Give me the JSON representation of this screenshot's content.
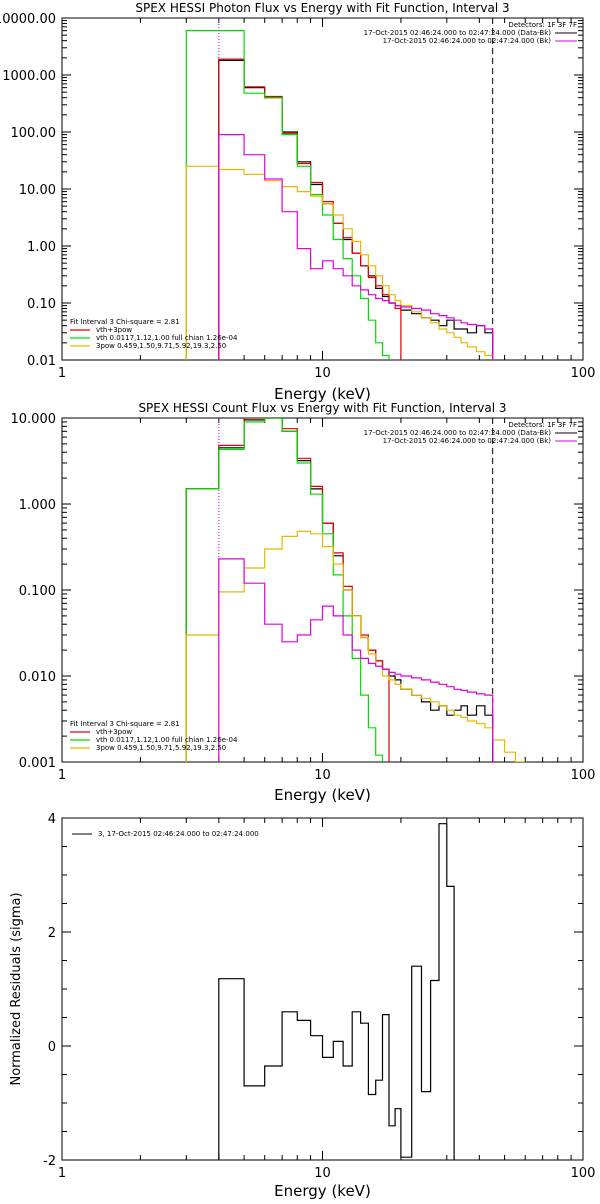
{
  "chart_data": [
    {
      "type": "line",
      "title": "SPEX HESSI Photon Flux vs Energy with Fit Function, Interval 3",
      "xlabel": "Energy (keV)",
      "ylabel": "",
      "x_scale": "log",
      "y_scale": "log",
      "xlim": [
        1,
        100
      ],
      "ylim": [
        0.01,
        10000
      ],
      "x_ticks": [
        "1",
        "10",
        "100"
      ],
      "y_ticks": [
        "0.01",
        "0.10",
        "1.00",
        "10.00",
        "100.00",
        "1000.00",
        "10000.00"
      ],
      "header_lines": [
        "Detectors: 1F 3F 7F",
        "17-Oct-2015 02:46:24.000 to 02:47:24.000 (Data-Bk)",
        "17-Oct-2015 02:46:24.000 to 02:47:24.000 (Bk)"
      ],
      "legend_lines": [
        "Fit Interval 3   Chi-square = 2.81",
        "vth+3pow",
        "vth 0.0117,1.12,1.00  full chian 1.26e-04",
        "3pow 0.459,1.50,9.71,5.92,19.3,2.50"
      ],
      "vlines": [
        4.0,
        45.0
      ],
      "edges": [
        3,
        4,
        5,
        6,
        7,
        8,
        9,
        10,
        11,
        12,
        13,
        14,
        15,
        16,
        17,
        18,
        19,
        20,
        22,
        24,
        26,
        28,
        30,
        32,
        34,
        36,
        39,
        42,
        45
      ],
      "series": [
        {
          "color": "#000000",
          "values": [
            null,
            1800,
            600,
            400,
            100,
            30,
            12,
            5.5,
            2.5,
            1.3,
            0.75,
            0.45,
            0.3,
            0.18,
            0.13,
            0.1,
            0.09,
            0.075,
            0.065,
            0.055,
            0.05,
            0.04,
            0.05,
            0.035,
            0.035,
            0.03,
            0.04,
            0.03
          ]
        },
        {
          "color": "#e00000",
          "values": [
            null,
            1900,
            620,
            420,
            95,
            28,
            13,
            6,
            2.5,
            1.4,
            0.75,
            0.45,
            0.28,
            0.2,
            0.14,
            0.1,
            0.08,
            null,
            null,
            null,
            null,
            null,
            null,
            null,
            null,
            null,
            null,
            null
          ]
        },
        {
          "color": "#00dd00",
          "values": [
            6000,
            6000,
            480,
            400,
            90,
            25,
            8,
            3.5,
            1.3,
            0.6,
            0.3,
            0.12,
            0.05,
            0.02,
            0.012,
            null,
            null,
            null,
            null,
            null,
            null,
            null,
            null,
            null,
            null,
            null,
            null,
            null
          ]
        },
        {
          "color": "#e8b800",
          "values": [
            25,
            22,
            18,
            14,
            11,
            9,
            7.5,
            5.5,
            3.5,
            2,
            1.2,
            0.7,
            0.45,
            0.3,
            0.2,
            0.14,
            0.11,
            0.09,
            0.07,
            0.055,
            0.045,
            0.035,
            0.03,
            0.025,
            0.02,
            0.017,
            0.014,
            0.012
          ]
        },
        {
          "color": "#e000e0",
          "values": [
            null,
            90,
            40,
            15,
            4,
            0.9,
            0.4,
            0.55,
            0.4,
            0.3,
            0.2,
            0.17,
            0.14,
            0.12,
            0.11,
            0.1,
            0.09,
            0.085,
            0.08,
            0.075,
            0.065,
            0.06,
            0.055,
            0.05,
            0.045,
            0.042,
            0.04,
            0.035
          ]
        }
      ]
    },
    {
      "type": "line",
      "title": "SPEX HESSI Count Flux vs Energy with Fit Function, Interval 3",
      "xlabel": "Energy (keV)",
      "ylabel": "",
      "x_scale": "log",
      "y_scale": "log",
      "xlim": [
        1,
        100
      ],
      "ylim": [
        0.001,
        10
      ],
      "x_ticks": [
        "1",
        "10",
        "100"
      ],
      "y_ticks": [
        "0.001",
        "0.010",
        "0.100",
        "1.000",
        "10.000"
      ],
      "header_lines": [
        "Detectors: 1F 3F 7F",
        "17-Oct-2015 02:46:24.000 to 02:47:24.000 (Data-Bk)",
        "17-Oct-2015 02:46:24.000 to 02:47:24.000 (Bk)"
      ],
      "legend_lines": [
        "Fit Interval 3   Chi-square = 2.81",
        "vth+3pow",
        "vth 0.0117,1.12,1.00  full chian 1.26e-04",
        "3pow 0.459,1.50,9.71,5.92,19.3,2.50"
      ],
      "vlines": [
        4.0,
        45.0
      ],
      "edges": [
        3,
        4,
        5,
        6,
        7,
        8,
        9,
        10,
        11,
        12,
        13,
        14,
        15,
        16,
        17,
        18,
        19,
        20,
        22,
        24,
        26,
        28,
        30,
        32,
        34,
        36,
        39,
        42,
        45,
        50,
        55,
        60,
        65
      ],
      "series": [
        {
          "color": "#000000",
          "values": [
            1.5,
            4.5,
            9.5,
            10,
            7,
            3.2,
            1.5,
            0.6,
            0.25,
            0.1,
            0.05,
            0.028,
            0.02,
            0.015,
            0.012,
            0.01,
            0.009,
            0.007,
            0.006,
            0.005,
            0.004,
            0.0045,
            0.0035,
            0.004,
            0.0045,
            0.0035,
            0.0045,
            0.0035,
            null,
            null,
            null,
            null
          ]
        },
        {
          "color": "#e00000",
          "values": [
            1.5,
            4.8,
            10,
            11,
            7.5,
            3.4,
            1.6,
            0.6,
            0.27,
            0.11,
            0.05,
            0.03,
            0.02,
            0.015,
            0.012,
            null,
            null,
            null,
            null,
            null,
            null,
            null,
            null,
            null,
            null,
            null,
            null,
            null,
            null,
            null,
            null,
            null
          ]
        },
        {
          "color": "#00dd00",
          "values": [
            1.5,
            4.3,
            9,
            10,
            7,
            3,
            1.3,
            0.45,
            0.15,
            0.05,
            0.016,
            0.006,
            0.0025,
            0.0012,
            null,
            null,
            null,
            null,
            null,
            null,
            null,
            null,
            null,
            null,
            null,
            null,
            null,
            null,
            null,
            null,
            null,
            null
          ]
        },
        {
          "color": "#e8b800",
          "values": [
            0.03,
            0.095,
            0.18,
            0.3,
            0.42,
            0.48,
            0.45,
            0.32,
            0.2,
            0.1,
            0.05,
            0.028,
            0.018,
            0.013,
            0.01,
            0.009,
            0.008,
            0.007,
            0.006,
            0.0055,
            0.005,
            0.0045,
            0.004,
            0.0035,
            0.0033,
            0.003,
            0.0028,
            0.0025,
            0.0018,
            0.0013,
            0.001,
            null
          ]
        },
        {
          "color": "#e000e0",
          "values": [
            null,
            0.23,
            0.12,
            0.04,
            0.025,
            0.03,
            0.045,
            0.065,
            0.05,
            0.03,
            0.02,
            0.016,
            0.014,
            0.013,
            0.012,
            0.011,
            0.0105,
            0.01,
            0.0095,
            0.009,
            0.0085,
            0.008,
            0.0075,
            0.007,
            0.0068,
            0.0065,
            0.0062,
            0.006,
            null,
            null,
            null,
            null
          ]
        }
      ]
    },
    {
      "type": "line",
      "title": "",
      "xlabel": "Energy (keV)",
      "ylabel": "Normalized Residuals (sigma)",
      "x_scale": "log",
      "y_scale": "linear",
      "xlim": [
        1,
        100
      ],
      "ylim": [
        -2,
        4
      ],
      "x_ticks": [
        "1",
        "10",
        "100"
      ],
      "y_ticks": [
        "-2",
        "0",
        "2",
        "4"
      ],
      "legend": "3, 17-Oct-2015 02:46:24.000 to 02:47:24.000",
      "edges": [
        4,
        5,
        6,
        7,
        8,
        9,
        10,
        11,
        12,
        13,
        14,
        15,
        16,
        17,
        18,
        19,
        20,
        22,
        24,
        26,
        28,
        30,
        32,
        34,
        36,
        39,
        42,
        45
      ],
      "series": [
        {
          "color": "#000000",
          "values": [
            1.18,
            -0.7,
            -0.35,
            0.6,
            0.45,
            0.18,
            -0.2,
            0.08,
            -0.35,
            0.6,
            0.4,
            -0.85,
            -0.6,
            0.55,
            -1.4,
            -1.1,
            -1.95,
            1.4,
            -0.8,
            1.15,
            3.9,
            2.8,
            null,
            null,
            null,
            null,
            null
          ]
        }
      ]
    }
  ]
}
